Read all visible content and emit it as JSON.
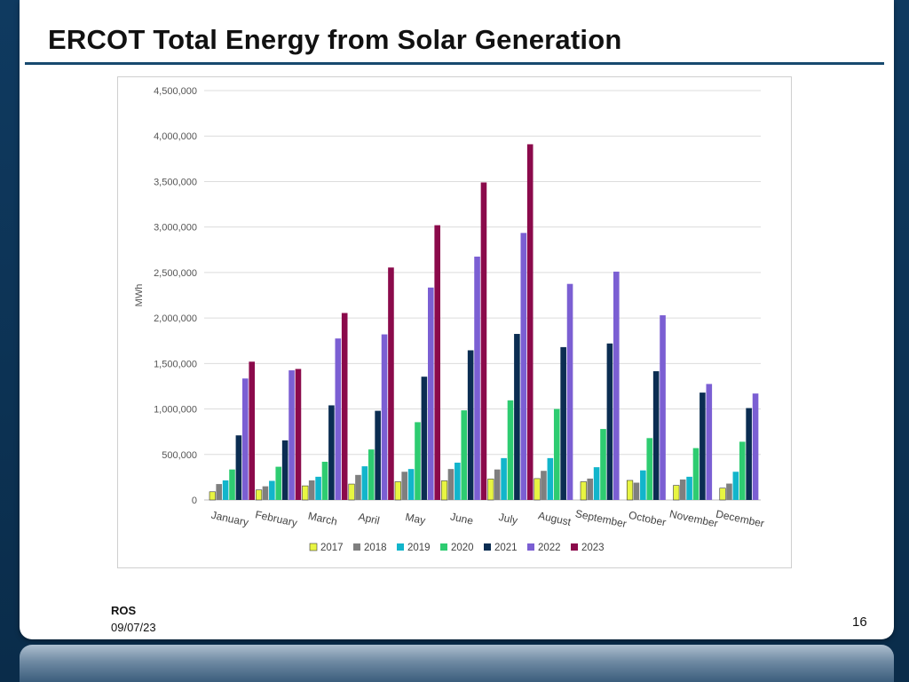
{
  "slide": {
    "title": "ERCOT Total Energy from Solar Generation",
    "footer_org": "ROS",
    "footer_date": "09/07/23",
    "page_number": "16"
  },
  "chart_data": {
    "type": "bar",
    "title": "",
    "xlabel": "",
    "ylabel": "MWh",
    "ylim": [
      0,
      4500000
    ],
    "yticks": [
      0,
      500000,
      1000000,
      1500000,
      2000000,
      2500000,
      3000000,
      3500000,
      4000000,
      4500000
    ],
    "ytick_labels": [
      "0",
      "500,000",
      "1,000,000",
      "1,500,000",
      "2,000,000",
      "2,500,000",
      "3,000,000",
      "3,500,000",
      "4,000,000",
      "4,500,000"
    ],
    "grid": true,
    "legend_position": "bottom",
    "categories": [
      "January",
      "February",
      "March",
      "April",
      "May",
      "June",
      "July",
      "August",
      "September",
      "October",
      "November",
      "December"
    ],
    "series": [
      {
        "name": "2017",
        "color": "#e8f542",
        "values": [
          90000,
          110000,
          155000,
          175000,
          200000,
          210000,
          230000,
          235000,
          200000,
          215000,
          160000,
          130000
        ]
      },
      {
        "name": "2018",
        "color": "#7f7f7f",
        "values": [
          175000,
          150000,
          215000,
          275000,
          310000,
          340000,
          335000,
          320000,
          235000,
          190000,
          225000,
          180000
        ]
      },
      {
        "name": "2019",
        "color": "#12b5cb",
        "values": [
          215000,
          210000,
          255000,
          370000,
          340000,
          410000,
          460000,
          460000,
          360000,
          325000,
          255000,
          310000
        ]
      },
      {
        "name": "2020",
        "color": "#2ecc71",
        "values": [
          335000,
          365000,
          420000,
          555000,
          855000,
          985000,
          1095000,
          1000000,
          780000,
          680000,
          570000,
          640000
        ]
      },
      {
        "name": "2021",
        "color": "#0b2d52",
        "values": [
          710000,
          655000,
          1040000,
          980000,
          1355000,
          1645000,
          1825000,
          1680000,
          1720000,
          1415000,
          1180000,
          1010000
        ]
      },
      {
        "name": "2022",
        "color": "#7b5fd3",
        "values": [
          1335000,
          1425000,
          1775000,
          1820000,
          2335000,
          2675000,
          2935000,
          2375000,
          2510000,
          2030000,
          1275000,
          1170000
        ]
      },
      {
        "name": "2023",
        "color": "#8b0a4b",
        "values": [
          1520000,
          1440000,
          2055000,
          2555000,
          3020000,
          3490000,
          3910000,
          null,
          null,
          null,
          null,
          null
        ]
      }
    ]
  }
}
